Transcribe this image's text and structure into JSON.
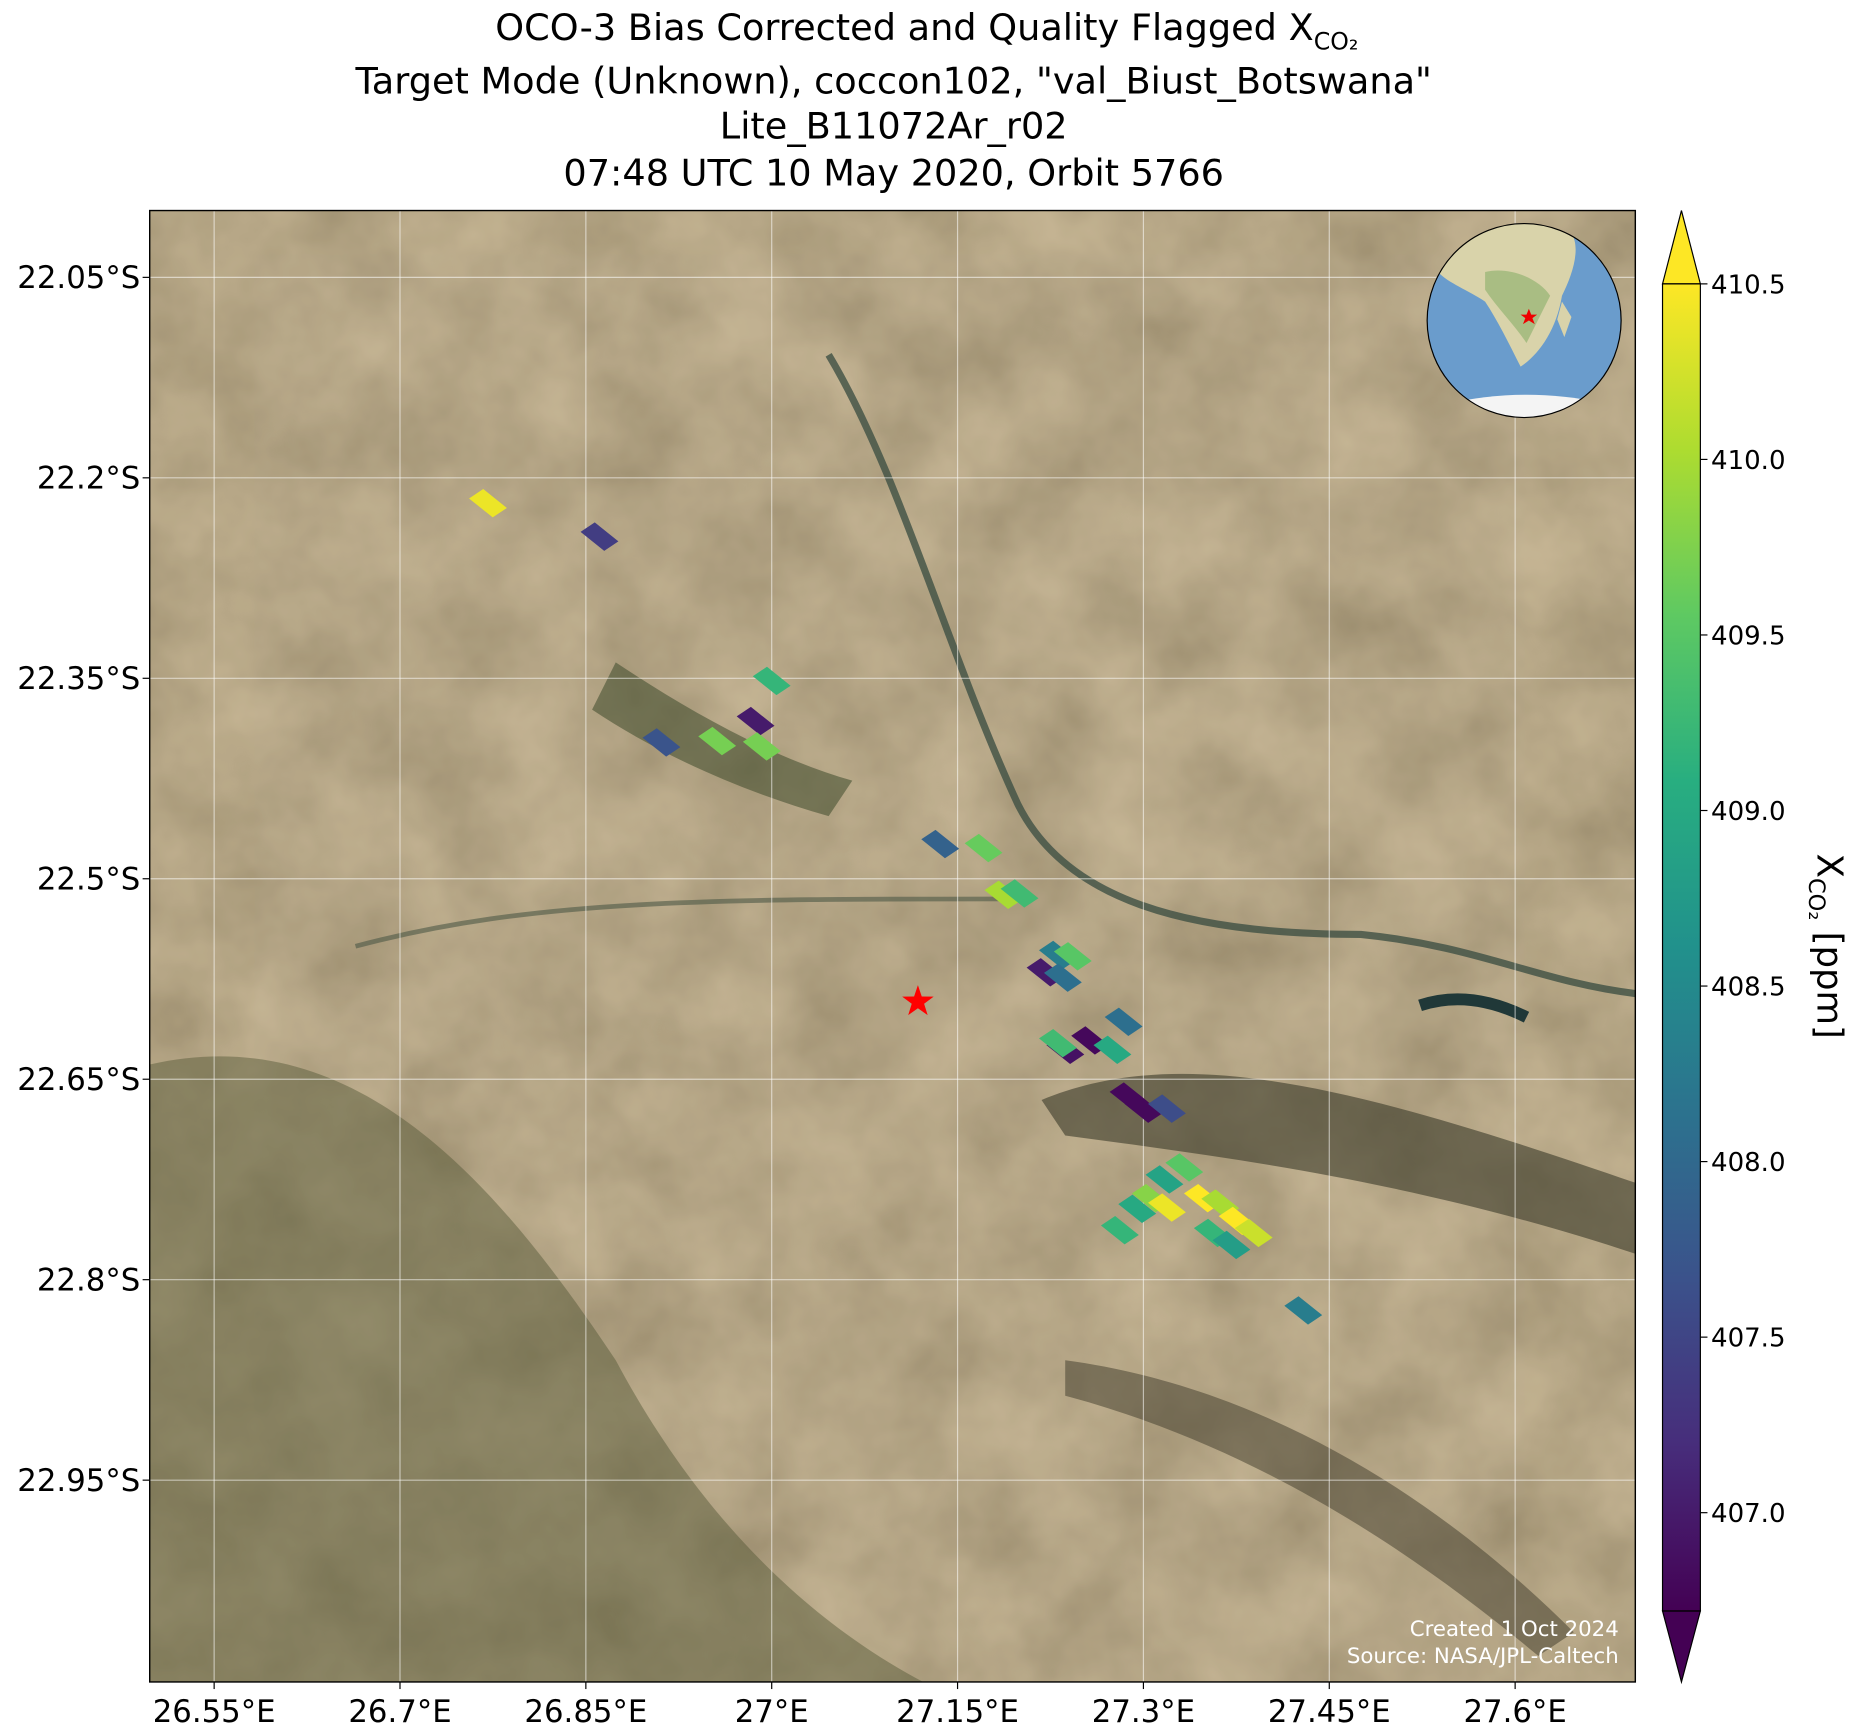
{
  "chart_data": {
    "type": "map",
    "title": {
      "text": "OCO-3 Bias Corrected and Quality Flagged X",
      "subscript": "CO₂"
    },
    "subtitle": [
      "Target Mode (Unknown), coccon102, \"val_Biust_Botswana\"",
      "Lite_B11072Ar_r02",
      "07:48 UTC 10 May 2020, Orbit 5766"
    ],
    "xlim": [
      26.498,
      27.697
    ],
    "ylim": [
      -23.101,
      -22.0
    ],
    "xticks": [
      {
        "value": 26.55,
        "label": "26.55°E"
      },
      {
        "value": 26.7,
        "label": "26.7°E"
      },
      {
        "value": 26.85,
        "label": "26.85°E"
      },
      {
        "value": 27.0,
        "label": "27°E"
      },
      {
        "value": 27.15,
        "label": "27.15°E"
      },
      {
        "value": 27.3,
        "label": "27.3°E"
      },
      {
        "value": 27.45,
        "label": "27.45°E"
      },
      {
        "value": 27.6,
        "label": "27.6°E"
      }
    ],
    "yticks": [
      {
        "value": -22.05,
        "label": "22.05°S"
      },
      {
        "value": -22.2,
        "label": "22.2°S"
      },
      {
        "value": -22.35,
        "label": "22.35°S"
      },
      {
        "value": -22.5,
        "label": "22.5°S"
      },
      {
        "value": -22.65,
        "label": "22.65°S"
      },
      {
        "value": -22.8,
        "label": "22.8°S"
      },
      {
        "value": -22.95,
        "label": "22.95°S"
      }
    ],
    "grid": true,
    "footprints": {
      "lon": [
        26.771,
        26.861,
        27.0,
        26.911,
        26.956,
        26.987,
        26.992,
        27.136,
        27.171,
        27.187,
        27.2,
        27.221,
        27.231,
        27.243,
        27.235,
        27.284,
        27.257,
        27.275,
        27.237,
        27.231,
        27.288,
        27.3,
        27.319,
        27.281,
        27.295,
        27.306,
        27.319,
        27.317,
        27.333,
        27.348,
        27.362,
        27.376,
        27.356,
        27.371,
        27.389,
        27.429
      ],
      "lat": [
        -22.219,
        -22.244,
        -22.352,
        -22.398,
        -22.397,
        -22.382,
        -22.401,
        -22.474,
        -22.477,
        -22.512,
        -22.511,
        -22.57,
        -22.557,
        -22.558,
        -22.574,
        -22.607,
        -22.621,
        -22.628,
        -22.628,
        -22.623,
        -22.663,
        -22.672,
        -22.672,
        -22.763,
        -22.747,
        -22.739,
        -22.746,
        -22.725,
        -22.716,
        -22.739,
        -22.743,
        -22.756,
        -22.765,
        -22.774,
        -22.765,
        -22.823
      ],
      "values": [
        410.4,
        407.4,
        409.2,
        407.7,
        409.7,
        407.0,
        409.7,
        407.9,
        409.6,
        410.0,
        409.3,
        407.0,
        408.3,
        409.5,
        408.1,
        408.1,
        406.8,
        409.0,
        406.9,
        409.3,
        406.8,
        406.8,
        407.6,
        409.2,
        409.0,
        409.8,
        410.4,
        408.9,
        409.5,
        410.5,
        410.0,
        410.5,
        409.2,
        408.8,
        410.2,
        408.3
      ]
    },
    "target": {
      "lon": 27.118,
      "lat": -22.592
    },
    "colorbar": {
      "clim": [
        406.72,
        410.5
      ],
      "ticks": [
        {
          "value": 407.0,
          "label": "407.0"
        },
        407.5,
        {
          "value": 408.0,
          "label": "408.0"
        },
        408.5,
        {
          "value": 409.0,
          "label": "409.0"
        },
        409.5,
        {
          "value": 410.0,
          "label": "410.0"
        },
        410.5
      ],
      "label": {
        "symbol": "X",
        "subscript": "CO₂",
        "unit": " [ppm]"
      },
      "colormap": "viridis",
      "extend": "both"
    },
    "annotations": [
      "Created 1 Oct 2024",
      "Source: NASA/JPL-Caltech"
    ]
  }
}
